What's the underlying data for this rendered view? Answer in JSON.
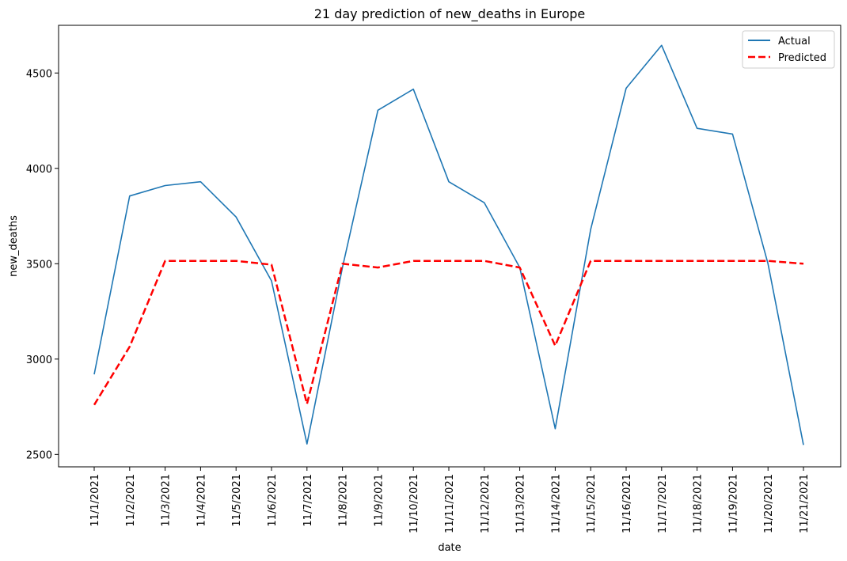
{
  "chart_data": {
    "type": "line",
    "title": "21 day prediction of new_deaths in Europe",
    "xlabel": "date",
    "ylabel": "new_deaths",
    "categories": [
      "11/1/2021",
      "11/2/2021",
      "11/3/2021",
      "11/4/2021",
      "11/5/2021",
      "11/6/2021",
      "11/7/2021",
      "11/8/2021",
      "11/9/2021",
      "11/10/2021",
      "11/11/2021",
      "11/12/2021",
      "11/13/2021",
      "11/14/2021",
      "11/15/2021",
      "11/16/2021",
      "11/17/2021",
      "11/18/2021",
      "11/19/2021",
      "11/20/2021",
      "11/21/2021"
    ],
    "ylim": [
      2435,
      4750
    ],
    "yticks": [
      2500,
      3000,
      3500,
      4000,
      4500
    ],
    "grid": false,
    "legend_position": "top-right",
    "series": [
      {
        "name": "Actual",
        "color": "#1f77b4",
        "style": "solid",
        "values": [
          2920,
          3855,
          3910,
          3930,
          3745,
          3410,
          2555,
          3480,
          4305,
          4415,
          3930,
          3820,
          3480,
          2635,
          3680,
          4420,
          4645,
          4210,
          4180,
          3500,
          2550
        ]
      },
      {
        "name": "Predicted",
        "color": "#ff0000",
        "style": "dashed",
        "values": [
          2760,
          3065,
          3515,
          3515,
          3515,
          3495,
          2765,
          3500,
          3480,
          3515,
          3515,
          3515,
          3480,
          3070,
          3515,
          3515,
          3515,
          3515,
          3515,
          3515,
          3500
        ]
      }
    ]
  }
}
